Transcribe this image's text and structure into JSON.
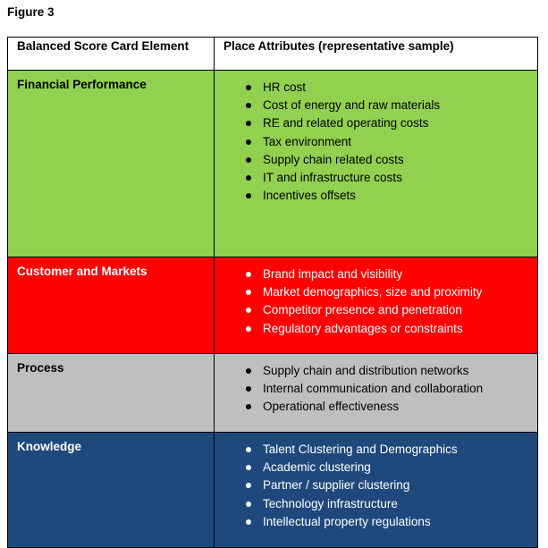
{
  "figure_label": "Figure 3",
  "table": {
    "headers": [
      "Balanced Score Card Element",
      "Place Attributes (representative sample)"
    ],
    "rows": [
      {
        "element": "Financial Performance",
        "attributes": [
          "HR cost",
          "Cost of energy and raw materials",
          "RE and related operating costs",
          "Tax environment",
          "Supply chain related costs",
          "IT and infrastructure costs",
          "Incentives offsets"
        ]
      },
      {
        "element": "Customer and Markets",
        "attributes": [
          "Brand impact and visibility",
          "Market demographics, size and proximity",
          "Competitor presence and penetration",
          "Regulatory advantages or constraints"
        ]
      },
      {
        "element": "Process",
        "attributes": [
          "Supply chain and distribution networks",
          "Internal communication and collaboration",
          "Operational effectiveness"
        ]
      },
      {
        "element": "Knowledge",
        "attributes": [
          "Talent Clustering and Demographics",
          "Academic clustering",
          "Partner / supplier clustering",
          "Technology infrastructure",
          "Intellectual property regulations"
        ]
      }
    ]
  },
  "colors": {
    "financial": "#92d050",
    "customer": "#ff0000",
    "process": "#bfbfbf",
    "knowledge": "#1f497d"
  }
}
